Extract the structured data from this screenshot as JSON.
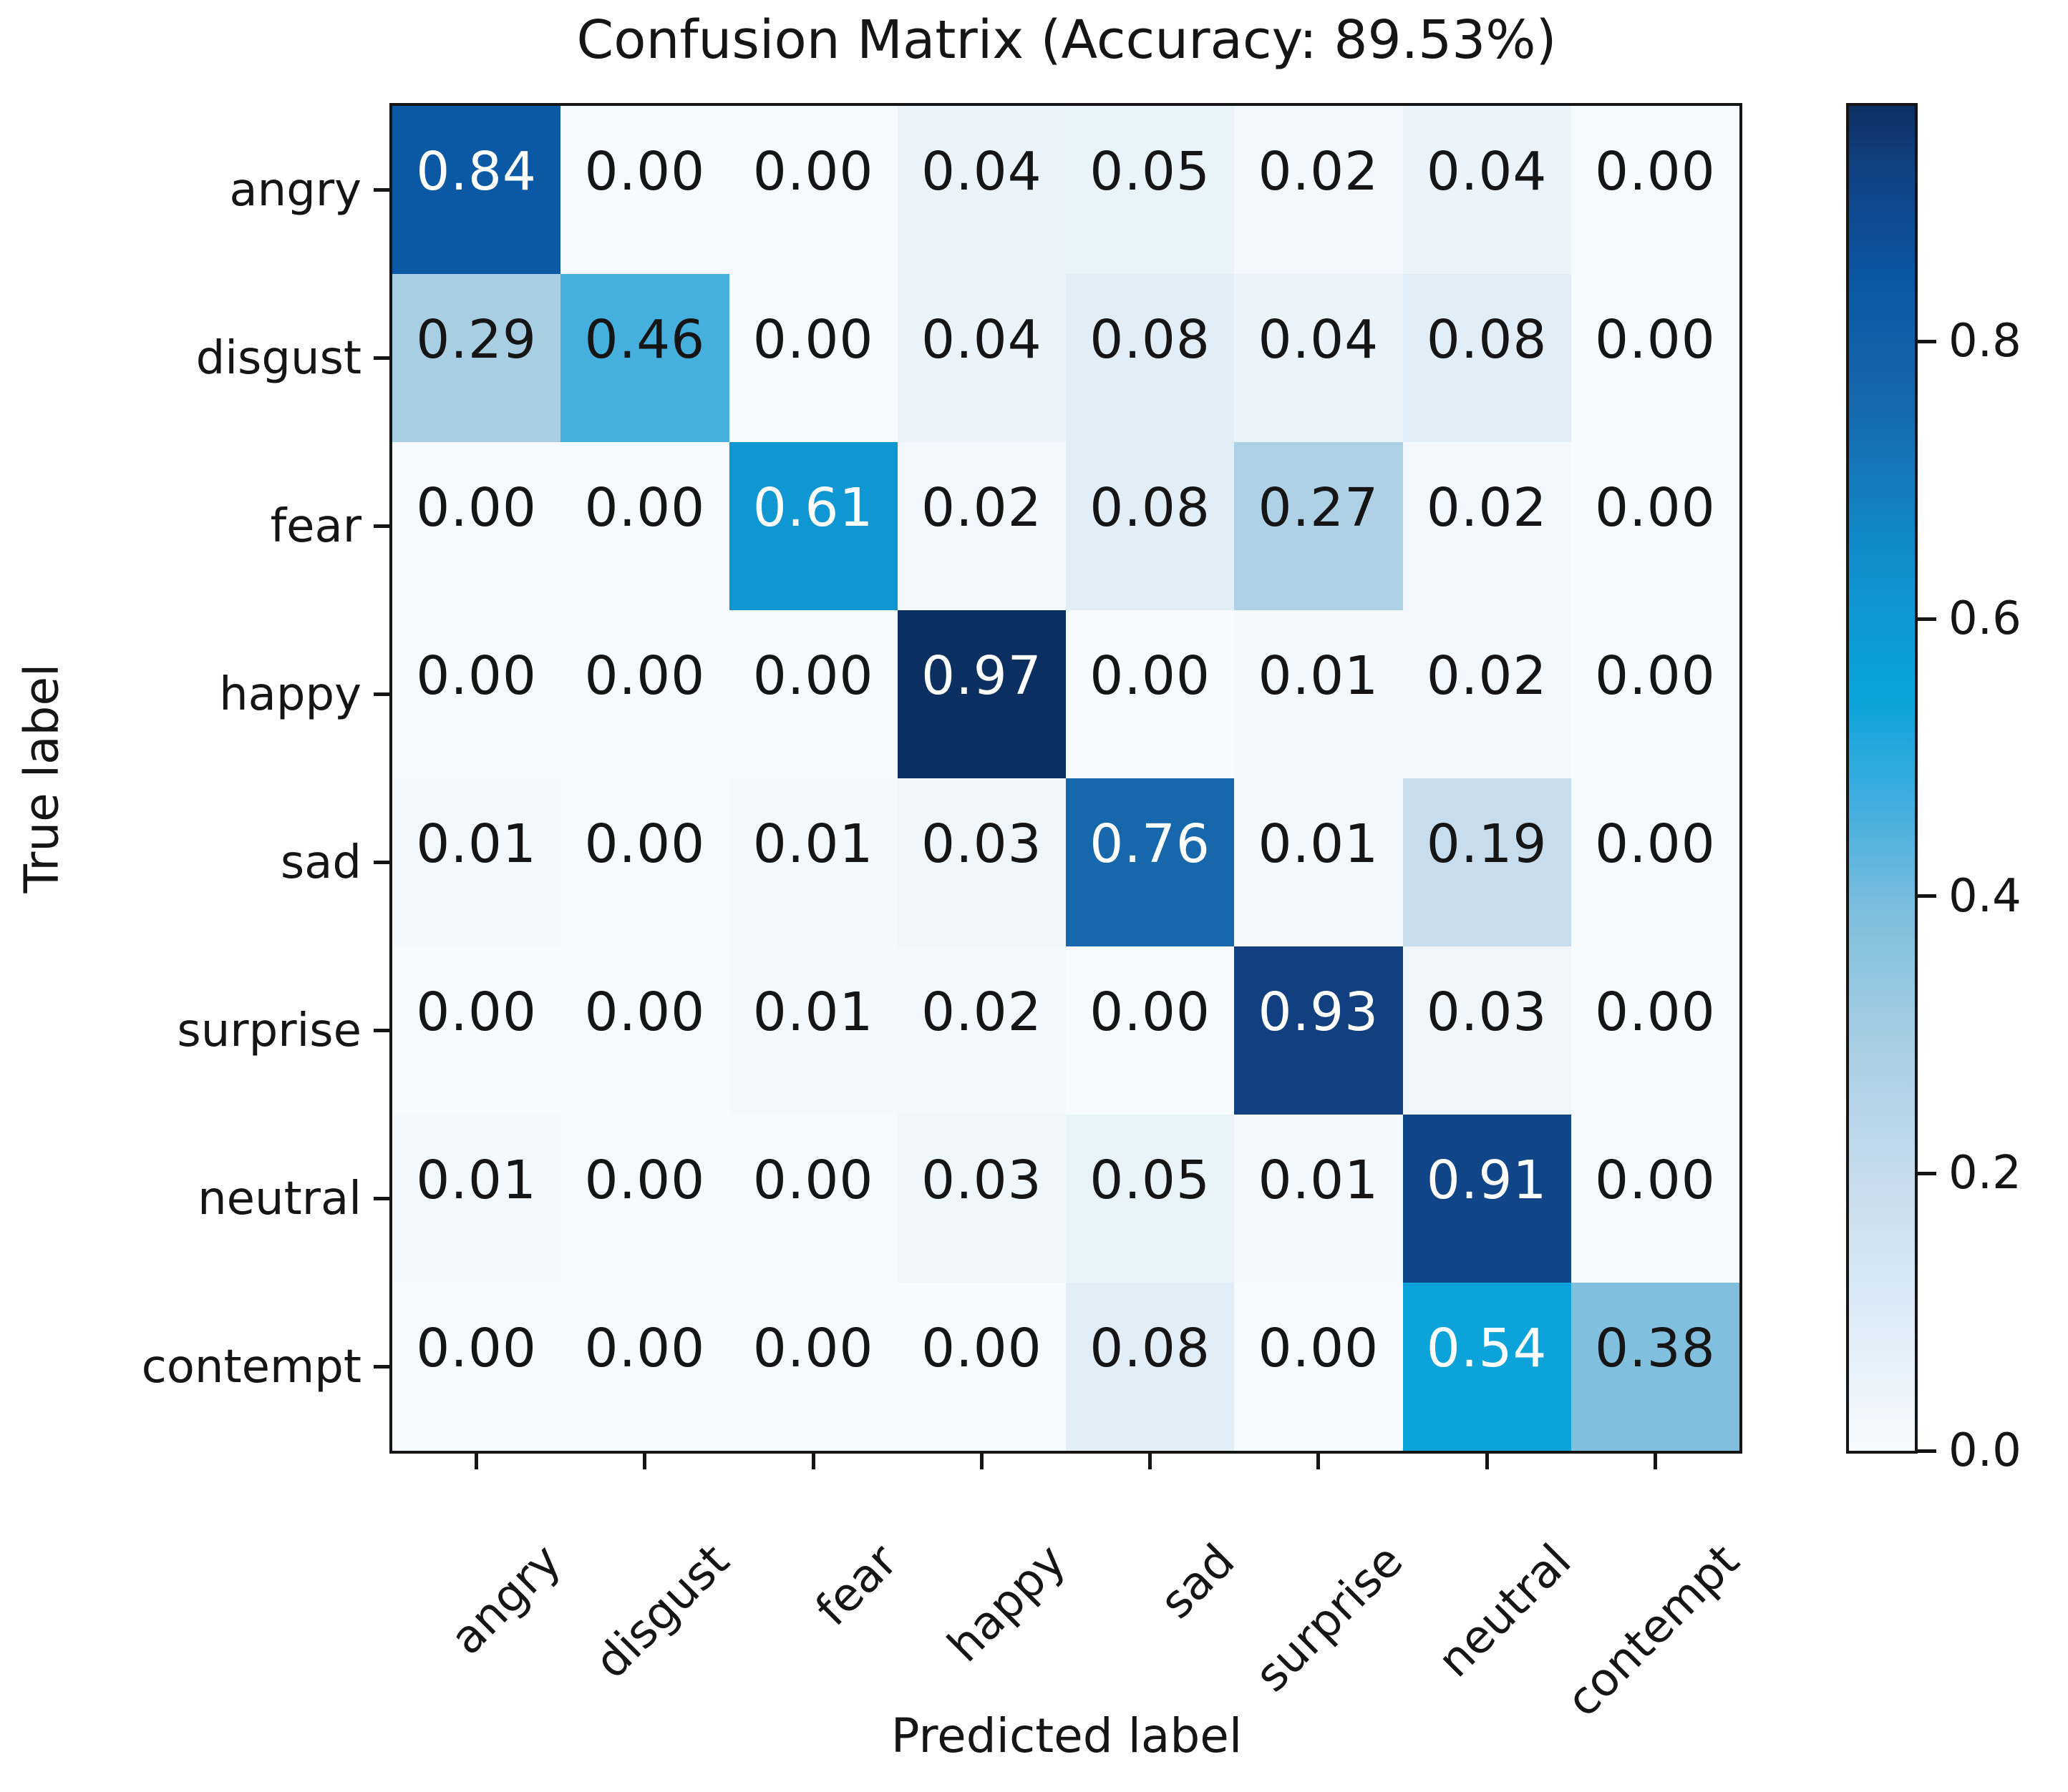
{
  "figure": {
    "title": "Confusion Matrix (Accuracy: 89.53%)",
    "xlabel": "Predicted label",
    "ylabel": "True label"
  },
  "chart_data": {
    "type": "heatmap",
    "title": "Confusion Matrix (Accuracy: 89.53%)",
    "subtitle": "",
    "xlabel": "Predicted label",
    "ylabel": "True label",
    "accuracy_percent": 89.53,
    "x_categories": [
      "angry",
      "disgust",
      "fear",
      "happy",
      "sad",
      "surprise",
      "neutral",
      "contempt"
    ],
    "y_categories": [
      "angry",
      "disgust",
      "fear",
      "happy",
      "sad",
      "surprise",
      "neutral",
      "contempt"
    ],
    "matrix": [
      [
        0.84,
        0.0,
        0.0,
        0.04,
        0.05,
        0.02,
        0.04,
        0.0
      ],
      [
        0.29,
        0.46,
        0.0,
        0.04,
        0.08,
        0.04,
        0.08,
        0.0
      ],
      [
        0.0,
        0.0,
        0.61,
        0.02,
        0.08,
        0.27,
        0.02,
        0.0
      ],
      [
        0.0,
        0.0,
        0.0,
        0.97,
        0.0,
        0.01,
        0.02,
        0.0
      ],
      [
        0.01,
        0.0,
        0.01,
        0.03,
        0.76,
        0.01,
        0.19,
        0.0
      ],
      [
        0.0,
        0.0,
        0.01,
        0.02,
        0.0,
        0.93,
        0.03,
        0.0
      ],
      [
        0.01,
        0.0,
        0.0,
        0.03,
        0.05,
        0.01,
        0.91,
        0.0
      ],
      [
        0.0,
        0.0,
        0.0,
        0.0,
        0.08,
        0.0,
        0.54,
        0.38
      ]
    ],
    "value_decimals": 2,
    "vmin": 0.0,
    "vmax": 0.97,
    "colormap": "Blues",
    "colorbar_ticks": [
      0.0,
      0.2,
      0.4,
      0.6,
      0.8
    ],
    "colorbar_tick_decimals": 1,
    "colorbar_position": "right",
    "grid": false,
    "x_tick_rotation_deg": 45
  },
  "colors": {
    "background": "#ffffff",
    "axis": "#151515",
    "cell_text_dark": "#151515",
    "cell_text_light": "#ffffff",
    "colormap_stops": [
      {
        "t": 0.0,
        "color": "#f7fbff"
      },
      {
        "t": 0.08,
        "color": "#e2eef8"
      },
      {
        "t": 0.2,
        "color": "#c6dcee"
      },
      {
        "t": 0.3,
        "color": "#a8cee4"
      },
      {
        "t": 0.4,
        "color": "#7ebedd"
      },
      {
        "t": 0.48,
        "color": "#41aede"
      },
      {
        "t": 0.56,
        "color": "#0aa3da"
      },
      {
        "t": 0.64,
        "color": "#0f95d2"
      },
      {
        "t": 0.78,
        "color": "#1668ac"
      },
      {
        "t": 0.87,
        "color": "#0b57a4"
      },
      {
        "t": 0.96,
        "color": "#113f7f"
      },
      {
        "t": 1.0,
        "color": "#0c2f62"
      }
    ]
  }
}
